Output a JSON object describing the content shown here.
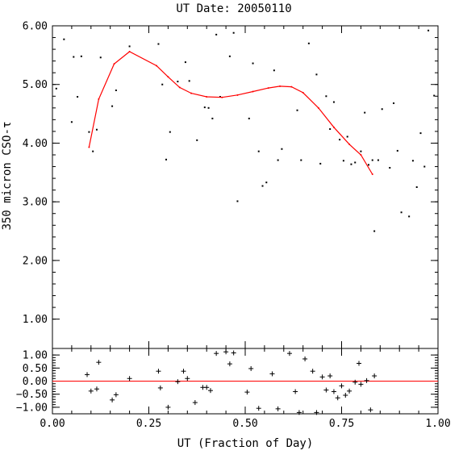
{
  "chart_data": [
    {
      "type": "scatter",
      "title": "UT Date: 20050110",
      "ylabel": "350 micron CSO-τ",
      "xlim": [
        0.0,
        1.0
      ],
      "ylim": [
        0.5,
        6.0
      ],
      "x_ticks": [
        "0.00",
        "0.25",
        "0.50",
        "0.75",
        "1.00"
      ],
      "y_ticks": [
        "1.00",
        "2.00",
        "3.00",
        "4.00",
        "5.00",
        "6.00"
      ],
      "y_tick_values": [
        1,
        2,
        3,
        4,
        5,
        6
      ],
      "colors": {
        "points": "#000000",
        "fit": "#ff0000",
        "frame": "#000000"
      },
      "series": [
        {
          "kind": "points",
          "points": [
            [
              0.01,
              4.93
            ],
            [
              0.03,
              5.77
            ],
            [
              0.05,
              4.36
            ],
            [
              0.055,
              5.47
            ],
            [
              0.065,
              4.79
            ],
            [
              0.075,
              5.48
            ],
            [
              0.095,
              4.19
            ],
            [
              0.105,
              3.86
            ],
            [
              0.115,
              4.23
            ],
            [
              0.125,
              5.46
            ],
            [
              0.155,
              4.63
            ],
            [
              0.165,
              4.9
            ],
            [
              0.2,
              5.65
            ],
            [
              0.275,
              5.69
            ],
            [
              0.285,
              5.0
            ],
            [
              0.295,
              3.72
            ],
            [
              0.305,
              4.19
            ],
            [
              0.325,
              5.05
            ],
            [
              0.345,
              5.38
            ],
            [
              0.355,
              5.06
            ],
            [
              0.375,
              4.05
            ],
            [
              0.395,
              4.61
            ],
            [
              0.405,
              4.6
            ],
            [
              0.415,
              4.42
            ],
            [
              0.425,
              5.85
            ],
            [
              0.435,
              4.79
            ],
            [
              0.46,
              5.48
            ],
            [
              0.47,
              5.88
            ],
            [
              0.48,
              3.01
            ],
            [
              0.51,
              4.42
            ],
            [
              0.52,
              5.36
            ],
            [
              0.535,
              3.86
            ],
            [
              0.545,
              3.27
            ],
            [
              0.555,
              3.33
            ],
            [
              0.575,
              5.24
            ],
            [
              0.585,
              3.71
            ],
            [
              0.595,
              3.9
            ],
            [
              0.635,
              4.56
            ],
            [
              0.645,
              3.71
            ],
            [
              0.665,
              5.7
            ],
            [
              0.685,
              5.17
            ],
            [
              0.695,
              3.65
            ],
            [
              0.71,
              4.8
            ],
            [
              0.72,
              4.24
            ],
            [
              0.73,
              4.7
            ],
            [
              0.745,
              4.06
            ],
            [
              0.755,
              3.7
            ],
            [
              0.765,
              4.11
            ],
            [
              0.775,
              3.64
            ],
            [
              0.785,
              3.67
            ],
            [
              0.8,
              3.86
            ],
            [
              0.81,
              4.52
            ],
            [
              0.82,
              3.63
            ],
            [
              0.83,
              3.71
            ],
            [
              0.835,
              2.5
            ],
            [
              0.845,
              3.71
            ],
            [
              0.855,
              4.58
            ],
            [
              0.875,
              3.58
            ],
            [
              0.885,
              4.68
            ],
            [
              0.895,
              3.87
            ],
            [
              0.905,
              2.82
            ],
            [
              0.925,
              2.75
            ],
            [
              0.935,
              3.7
            ],
            [
              0.945,
              3.25
            ],
            [
              0.955,
              4.17
            ],
            [
              0.965,
              3.6
            ],
            [
              0.975,
              5.92
            ],
            [
              0.99,
              4.81
            ]
          ]
        },
        {
          "kind": "fit",
          "points": [
            [
              0.095,
              3.93
            ],
            [
              0.12,
              4.75
            ],
            [
              0.16,
              5.35
            ],
            [
              0.2,
              5.56
            ],
            [
              0.27,
              5.32
            ],
            [
              0.3,
              5.13
            ],
            [
              0.33,
              4.95
            ],
            [
              0.36,
              4.85
            ],
            [
              0.4,
              4.79
            ],
            [
              0.44,
              4.78
            ],
            [
              0.48,
              4.82
            ],
            [
              0.52,
              4.88
            ],
            [
              0.56,
              4.94
            ],
            [
              0.59,
              4.97
            ],
            [
              0.62,
              4.96
            ],
            [
              0.65,
              4.86
            ],
            [
              0.69,
              4.6
            ],
            [
              0.73,
              4.27
            ],
            [
              0.77,
              3.98
            ],
            [
              0.8,
              3.8
            ],
            [
              0.83,
              3.47
            ]
          ]
        }
      ]
    },
    {
      "type": "scatter",
      "xlabel": "UT (Fraction of Day)",
      "xlim": [
        0.0,
        1.0
      ],
      "ylim": [
        -1.25,
        1.25
      ],
      "x_ticks": [
        "0.00",
        "0.25",
        "0.50",
        "0.75",
        "1.00"
      ],
      "y_ticks": [
        "1.00",
        "0.50",
        "0.00",
        "−0.50",
        "−1.00"
      ],
      "y_tick_values": [
        1,
        0.5,
        0,
        -0.5,
        -1
      ],
      "reference_line": 0,
      "series": [
        {
          "kind": "residuals",
          "points": [
            [
              0.09,
              0.25
            ],
            [
              0.1,
              -0.38
            ],
            [
              0.115,
              -0.3
            ],
            [
              0.12,
              0.72
            ],
            [
              0.155,
              -0.72
            ],
            [
              0.165,
              -0.52
            ],
            [
              0.2,
              0.1
            ],
            [
              0.275,
              0.38
            ],
            [
              0.28,
              -0.26
            ],
            [
              0.3,
              -1.0
            ],
            [
              0.325,
              -0.02
            ],
            [
              0.34,
              0.38
            ],
            [
              0.35,
              0.1
            ],
            [
              0.37,
              -0.82
            ],
            [
              0.39,
              -0.24
            ],
            [
              0.4,
              -0.24
            ],
            [
              0.41,
              -0.36
            ],
            [
              0.425,
              1.06
            ],
            [
              0.45,
              1.12
            ],
            [
              0.46,
              0.66
            ],
            [
              0.47,
              1.08
            ],
            [
              0.505,
              -0.42
            ],
            [
              0.515,
              0.48
            ],
            [
              0.535,
              -1.04
            ],
            [
              0.57,
              0.28
            ],
            [
              0.585,
              -1.06
            ],
            [
              0.615,
              1.06
            ],
            [
              0.63,
              -0.4
            ],
            [
              0.64,
              -1.2
            ],
            [
              0.655,
              0.85
            ],
            [
              0.675,
              0.38
            ],
            [
              0.685,
              -1.2
            ],
            [
              0.7,
              0.16
            ],
            [
              0.71,
              -0.34
            ],
            [
              0.72,
              0.2
            ],
            [
              0.73,
              -0.4
            ],
            [
              0.74,
              -0.64
            ],
            [
              0.75,
              -0.18
            ],
            [
              0.76,
              -0.54
            ],
            [
              0.77,
              -0.38
            ],
            [
              0.785,
              -0.04
            ],
            [
              0.795,
              0.68
            ],
            [
              0.8,
              -0.12
            ],
            [
              0.815,
              0.02
            ],
            [
              0.825,
              -1.1
            ],
            [
              0.835,
              0.2
            ]
          ]
        }
      ]
    }
  ]
}
